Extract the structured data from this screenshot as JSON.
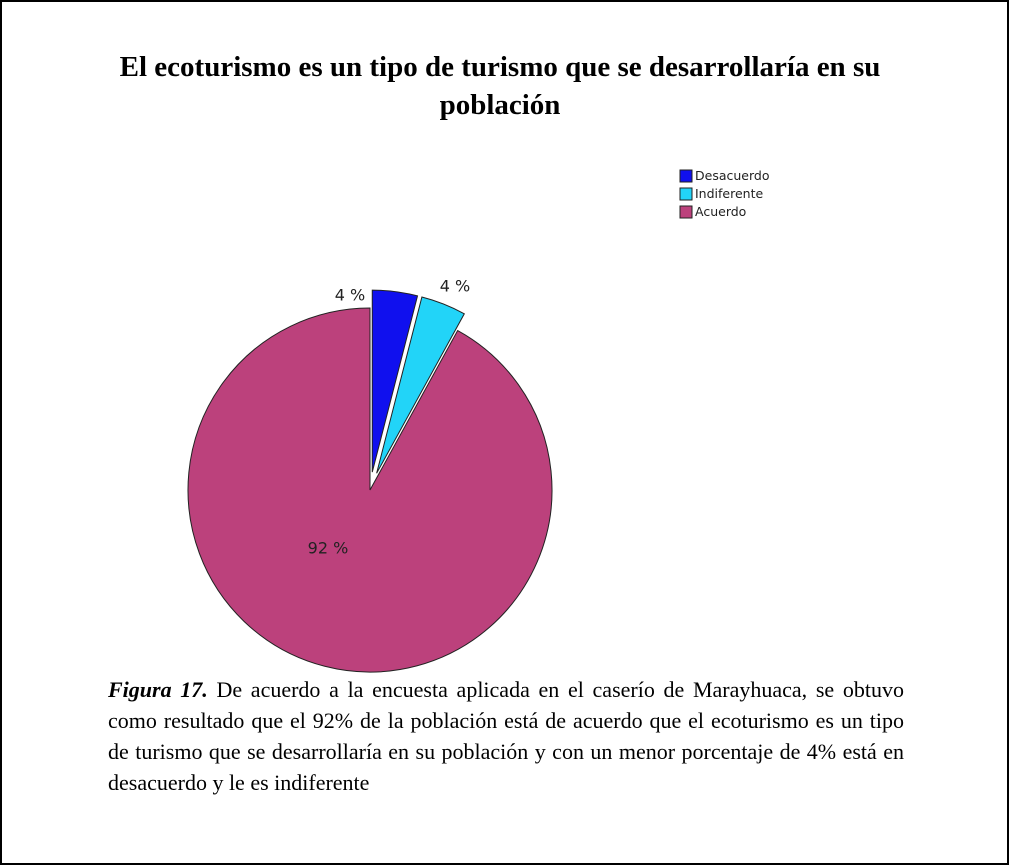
{
  "chart_data": {
    "type": "pie",
    "title": "El ecoturismo es un tipo de turismo que se desarrollaría en su población",
    "categories": [
      "Desacuerdo",
      "Indiferente",
      "Acuerdo"
    ],
    "values": [
      4,
      4,
      92
    ],
    "value_labels": [
      "4 %",
      "4 %",
      "92 %"
    ],
    "colors": [
      "#1010ee",
      "#22d4f8",
      "#bc417c"
    ],
    "exploded": [
      true,
      true,
      false
    ],
    "legend": "upper right"
  },
  "caption": {
    "label": "Figura 17.",
    "text": " De acuerdo a la encuesta aplicada en el caserío de Marayhuaca, se obtuvo como resultado que el 92% de la población está de acuerdo que el ecoturismo es un tipo de turismo que se desarrollaría en su población y con un menor porcentaje de 4% está en desacuerdo y le es indiferente"
  }
}
